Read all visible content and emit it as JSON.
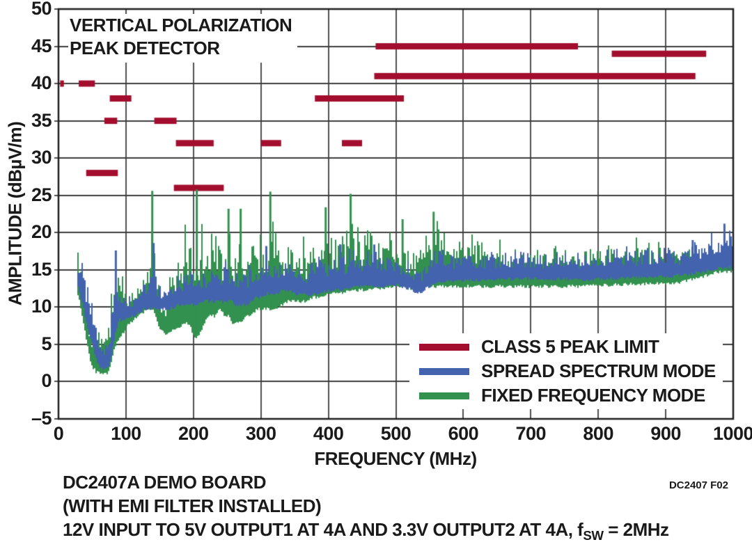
{
  "title_lines": [
    "VERTICAL POLARIZATION",
    "PEAK DETECTOR"
  ],
  "footnote": "DC2407 F02",
  "caption": {
    "line1": "DC2407A DEMO BOARD",
    "line2": "(WITH EMI FILTER INSTALLED)",
    "line3_pre": "12V INPUT TO 5V OUTPUT1 AT 4A AND 3.3V OUTPUT2 AT 4A, f",
    "line3_sub": "SW",
    "line3_post": " = 2MHz"
  },
  "legend": {
    "items": [
      {
        "label": "CLASS 5 PEAK LIMIT",
        "color": "#A30E2F"
      },
      {
        "label": "SPREAD SPECTRUM MODE",
        "color": "#4463AF"
      },
      {
        "label": "FIXED FREQUENCY MODE",
        "color": "#33914F"
      }
    ]
  },
  "colors": {
    "red": "#A30E2F",
    "blue": "#4463AF",
    "green": "#33914F",
    "grid": "#3d3d3d",
    "border": "#1e1e1e",
    "text": "#1a1a1a"
  },
  "chart_data": {
    "type": "line",
    "title": "VERTICAL POLARIZATION PEAK DETECTOR",
    "xlabel": "FREQUENCY (MHz)",
    "ylabel": "AMPLITUDE (dBµV/m)",
    "xlim": [
      0,
      1000
    ],
    "ylim": [
      -5,
      50
    ],
    "x_ticks": [
      0,
      100,
      200,
      300,
      400,
      500,
      600,
      700,
      800,
      900,
      1000
    ],
    "y_ticks": [
      {
        "v": 50,
        "label": "50"
      },
      {
        "v": 45,
        "label": "45"
      },
      {
        "v": 40,
        "label": "40"
      },
      {
        "v": 35,
        "label": "35"
      },
      {
        "v": 30,
        "label": "30"
      },
      {
        "v": 25,
        "label": "25"
      },
      {
        "v": 20,
        "label": "20"
      },
      {
        "v": 15,
        "label": "15"
      },
      {
        "v": 10,
        "label": "10"
      },
      {
        "v": 5,
        "label": "5"
      },
      {
        "v": 0,
        "label": "0"
      },
      {
        "v": -5,
        "label": "–5"
      }
    ],
    "grid": true,
    "legend_position": "lower-right",
    "limit_series_name": "CLASS 5 PEAK LIMIT",
    "limit_segments": [
      {
        "f_start": 2.5,
        "f_end": 8,
        "level": 40
      },
      {
        "f_start": 30,
        "f_end": 54,
        "level": 40
      },
      {
        "f_start": 41,
        "f_end": 88,
        "level": 28
      },
      {
        "f_start": 68,
        "f_end": 87,
        "level": 35
      },
      {
        "f_start": 76,
        "f_end": 108,
        "level": 38
      },
      {
        "f_start": 142,
        "f_end": 175,
        "level": 35
      },
      {
        "f_start": 171,
        "f_end": 245,
        "level": 26
      },
      {
        "f_start": 174,
        "f_end": 230,
        "level": 32
      },
      {
        "f_start": 300,
        "f_end": 330,
        "level": 32
      },
      {
        "f_start": 380,
        "f_end": 512,
        "level": 38
      },
      {
        "f_start": 420,
        "f_end": 450,
        "level": 32
      },
      {
        "f_start": 468,
        "f_end": 944,
        "level": 41
      },
      {
        "f_start": 470,
        "f_end": 770,
        "level": 45
      },
      {
        "f_start": 820,
        "f_end": 960,
        "level": 44
      }
    ],
    "series": [
      {
        "name": "FIXED FREQUENCY MODE",
        "color": "#33914F",
        "envelope_format": "[freq_MHz, low_dBuV_m, high_dBuV_m]",
        "envelope": [
          [
            28,
            12,
            17.8
          ],
          [
            32,
            10,
            15
          ],
          [
            36,
            8,
            13
          ],
          [
            42,
            5,
            10
          ],
          [
            48,
            2.5,
            8
          ],
          [
            54,
            1.6,
            9
          ],
          [
            60,
            1.3,
            9.5
          ],
          [
            66,
            1.2,
            9.5
          ],
          [
            72,
            1.3,
            8
          ],
          [
            76,
            2.5,
            12
          ],
          [
            80,
            4,
            20.5
          ],
          [
            84,
            5,
            21
          ],
          [
            88,
            6,
            19.5
          ],
          [
            92,
            6.5,
            20
          ],
          [
            97,
            7,
            12
          ],
          [
            103,
            8,
            11.5
          ],
          [
            110,
            8.5,
            13
          ],
          [
            118,
            9,
            14
          ],
          [
            125,
            9.5,
            16
          ],
          [
            132,
            10,
            15
          ],
          [
            138,
            10,
            21
          ],
          [
            142,
            9.5,
            20
          ],
          [
            146,
            8,
            14
          ],
          [
            152,
            7,
            12
          ],
          [
            158,
            6.5,
            13
          ],
          [
            165,
            7,
            15
          ],
          [
            172,
            7,
            16
          ],
          [
            178,
            7.5,
            18.5
          ],
          [
            184,
            8,
            21
          ],
          [
            189,
            8,
            22.5
          ],
          [
            194,
            8,
            21
          ],
          [
            200,
            6,
            17
          ],
          [
            208,
            6.5,
            20
          ],
          [
            215,
            8,
            22.5
          ],
          [
            222,
            9,
            20
          ],
          [
            230,
            9,
            21.5
          ],
          [
            238,
            10,
            19
          ],
          [
            245,
            9,
            22
          ],
          [
            252,
            9,
            22.5
          ],
          [
            258,
            8,
            20
          ],
          [
            265,
            8,
            21.5
          ],
          [
            272,
            8.5,
            22.5
          ],
          [
            280,
            9,
            20
          ],
          [
            288,
            9.5,
            22
          ],
          [
            295,
            10,
            21
          ],
          [
            302,
            10,
            20
          ],
          [
            308,
            10,
            22
          ],
          [
            314,
            10,
            23.5
          ],
          [
            320,
            10,
            22
          ],
          [
            330,
            10.5,
            21
          ],
          [
            340,
            11,
            20.5
          ],
          [
            350,
            11,
            19
          ],
          [
            360,
            11,
            21.5
          ],
          [
            368,
            11,
            19
          ],
          [
            375,
            11.5,
            18
          ],
          [
            385,
            11.5,
            19.5
          ],
          [
            395,
            12,
            21.5
          ],
          [
            405,
            12,
            19.5
          ],
          [
            415,
            12,
            20
          ],
          [
            425,
            12.3,
            21
          ],
          [
            433,
            12.3,
            23
          ],
          [
            440,
            12.5,
            21
          ],
          [
            450,
            12.5,
            20.5
          ],
          [
            460,
            12.5,
            21.5
          ],
          [
            470,
            12.7,
            20.5
          ],
          [
            480,
            12.7,
            19.5
          ],
          [
            490,
            13,
            20.5
          ],
          [
            500,
            13,
            19.5
          ],
          [
            510,
            13,
            18.5
          ],
          [
            520,
            12.8,
            18
          ],
          [
            530,
            12.5,
            17
          ],
          [
            540,
            12.8,
            19
          ],
          [
            548,
            13,
            21
          ],
          [
            556,
            13,
            22
          ],
          [
            565,
            13,
            21.5
          ],
          [
            575,
            13,
            20.5
          ],
          [
            590,
            13,
            19.5
          ],
          [
            605,
            13,
            20.5
          ],
          [
            620,
            13,
            19
          ],
          [
            635,
            13,
            18.5
          ],
          [
            650,
            13,
            19.5
          ],
          [
            665,
            13,
            18.5
          ],
          [
            680,
            13,
            18
          ],
          [
            700,
            13,
            18.5
          ],
          [
            720,
            13,
            18
          ],
          [
            740,
            13,
            18.3
          ],
          [
            760,
            13,
            17.5
          ],
          [
            780,
            13,
            18
          ],
          [
            800,
            13.2,
            18
          ],
          [
            820,
            13.2,
            18.5
          ],
          [
            840,
            13.3,
            19
          ],
          [
            860,
            13.3,
            19.6
          ],
          [
            880,
            13.4,
            19
          ],
          [
            900,
            13.5,
            18.5
          ],
          [
            920,
            13.5,
            19
          ],
          [
            940,
            14,
            18.5
          ],
          [
            960,
            14.5,
            17.5
          ],
          [
            980,
            15,
            17.5
          ],
          [
            1000,
            15,
            17
          ]
        ],
        "peak_spikes": [
          [
            139,
            25.6
          ],
          [
            205,
            25.8
          ],
          [
            252,
            23.2
          ],
          [
            270,
            23.2
          ],
          [
            314,
            25.5
          ],
          [
            396,
            23.4
          ],
          [
            433,
            25.2
          ],
          [
            510,
            21.8
          ],
          [
            556,
            22.8
          ]
        ]
      },
      {
        "name": "SPREAD SPECTRUM MODE",
        "color": "#4463AF",
        "envelope_format": "[freq_MHz, low_dBuV_m, high_dBuV_m]",
        "envelope": [
          [
            28,
            13,
            17.5
          ],
          [
            32,
            11.5,
            16.5
          ],
          [
            36,
            10,
            15.5
          ],
          [
            42,
            7.5,
            13
          ],
          [
            48,
            5.5,
            11
          ],
          [
            54,
            3.5,
            9
          ],
          [
            60,
            2.2,
            7
          ],
          [
            66,
            2,
            6
          ],
          [
            72,
            2,
            6.5
          ],
          [
            76,
            3,
            10
          ],
          [
            80,
            5,
            14
          ],
          [
            84,
            7,
            17.3
          ],
          [
            88,
            8.5,
            15
          ],
          [
            92,
            8.5,
            12.5
          ],
          [
            97,
            8.5,
            11.5
          ],
          [
            103,
            9,
            11.5
          ],
          [
            110,
            9,
            12
          ],
          [
            118,
            9.5,
            13
          ],
          [
            125,
            10,
            13.5
          ],
          [
            132,
            10,
            14
          ],
          [
            138,
            10,
            16
          ],
          [
            141,
            10,
            18
          ],
          [
            145,
            10,
            14.5
          ],
          [
            152,
            10,
            13.5
          ],
          [
            160,
            10,
            13
          ],
          [
            168,
            10,
            13.5
          ],
          [
            175,
            10.5,
            14
          ],
          [
            182,
            10.5,
            15
          ],
          [
            188,
            10.5,
            16
          ],
          [
            195,
            10.5,
            15
          ],
          [
            202,
            10.5,
            14.5
          ],
          [
            210,
            11,
            15
          ],
          [
            218,
            11,
            15.5
          ],
          [
            225,
            11,
            16
          ],
          [
            232,
            11,
            15.5
          ],
          [
            240,
            11,
            16
          ],
          [
            248,
            11,
            16.5
          ],
          [
            255,
            11,
            15.5
          ],
          [
            262,
            10.5,
            15.5
          ],
          [
            270,
            10.5,
            16
          ],
          [
            278,
            10.5,
            15.5
          ],
          [
            285,
            11,
            16.5
          ],
          [
            292,
            11.5,
            17.5
          ],
          [
            300,
            11.5,
            17
          ],
          [
            308,
            12,
            18
          ],
          [
            315,
            12,
            17.5
          ],
          [
            322,
            12,
            17
          ],
          [
            330,
            12.5,
            17.5
          ],
          [
            340,
            12.5,
            17
          ],
          [
            350,
            12,
            16.5
          ],
          [
            358,
            12,
            16
          ],
          [
            365,
            11.8,
            15.5
          ],
          [
            372,
            11.8,
            16
          ],
          [
            380,
            12,
            16.5
          ],
          [
            388,
            12.2,
            17
          ],
          [
            395,
            12.3,
            17.5
          ],
          [
            403,
            12.5,
            18
          ],
          [
            410,
            12.5,
            17.8
          ],
          [
            418,
            12.5,
            18.2
          ],
          [
            425,
            12.7,
            18
          ],
          [
            433,
            12.8,
            18.3
          ],
          [
            440,
            13,
            18
          ],
          [
            450,
            13,
            17.5
          ],
          [
            460,
            13,
            18
          ],
          [
            470,
            13,
            18.3
          ],
          [
            480,
            13,
            18
          ],
          [
            490,
            13.2,
            17.8
          ],
          [
            500,
            13.2,
            17.5
          ],
          [
            508,
            13,
            17
          ],
          [
            515,
            12.8,
            16.5
          ],
          [
            522,
            12.5,
            16
          ],
          [
            530,
            12,
            15.5
          ],
          [
            538,
            12.3,
            16
          ],
          [
            545,
            12.8,
            16.5
          ],
          [
            555,
            13.2,
            17.5
          ],
          [
            565,
            13.5,
            18
          ],
          [
            575,
            13.7,
            18
          ],
          [
            590,
            13.8,
            17.8
          ],
          [
            605,
            13.8,
            17.5
          ],
          [
            620,
            13.8,
            17.5
          ],
          [
            640,
            14,
            17.8
          ],
          [
            660,
            14,
            17.5
          ],
          [
            680,
            14,
            17.5
          ],
          [
            700,
            14,
            17.8
          ],
          [
            720,
            14,
            17.5
          ],
          [
            740,
            14,
            17.5
          ],
          [
            760,
            14,
            17.3
          ],
          [
            780,
            13.8,
            17.5
          ],
          [
            800,
            14,
            17.8
          ],
          [
            820,
            14,
            18
          ],
          [
            840,
            14.2,
            18.2
          ],
          [
            860,
            14.2,
            18
          ],
          [
            880,
            14.3,
            18.2
          ],
          [
            900,
            14.3,
            18
          ],
          [
            920,
            14.5,
            18.3
          ],
          [
            940,
            14.7,
            18.8
          ],
          [
            955,
            15,
            19.5
          ],
          [
            970,
            15.3,
            20.3
          ],
          [
            985,
            15.5,
            21
          ],
          [
            1000,
            15.5,
            20.5
          ]
        ],
        "peak_spikes": [
          [
            85,
            17.6
          ],
          [
            141,
            18.6
          ],
          [
            308,
            18.2
          ],
          [
            418,
            18.4
          ],
          [
            468,
            18.4
          ],
          [
            940,
            19
          ],
          [
            987,
            21.2
          ]
        ]
      }
    ]
  }
}
